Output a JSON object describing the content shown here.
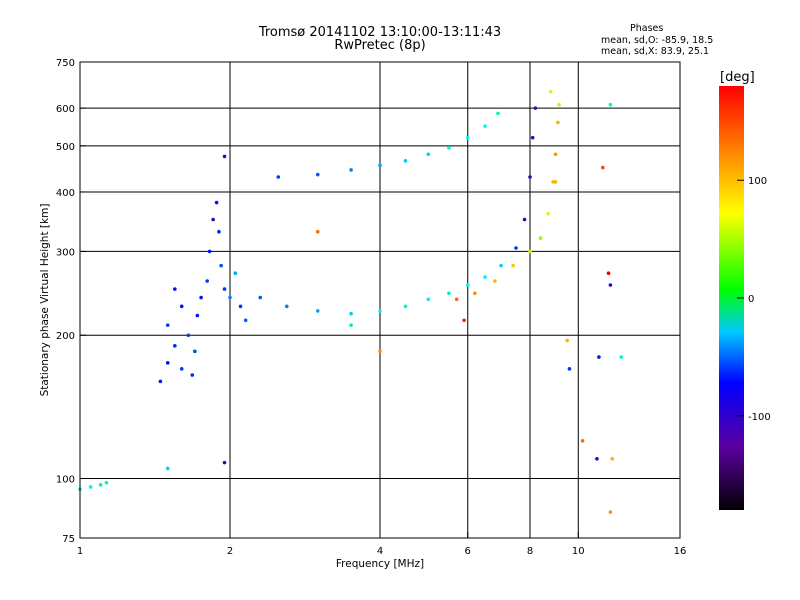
{
  "chart_data": {
    "type": "scatter",
    "title": "Tromsø 20141102 13:10:00-13:11:43",
    "subtitle": "RwPretec (8p)",
    "xlabel": "Frequency [MHz]",
    "ylabel": "Stationary phase Virtual Height [km]",
    "xscale": "log",
    "yscale": "log",
    "xlim": [
      1,
      16
    ],
    "ylim": [
      75,
      750
    ],
    "x_ticks": [
      1,
      2,
      4,
      6,
      8,
      10,
      16
    ],
    "y_ticks": [
      75,
      100,
      200,
      300,
      400,
      500,
      600,
      750
    ],
    "grid_x": [
      2,
      4,
      6,
      8,
      10
    ],
    "grid_y": [
      100,
      200,
      300,
      400,
      500,
      600
    ],
    "color_scale": {
      "label": "[deg]",
      "range": [
        -180,
        180
      ],
      "ticks": [
        100,
        0,
        -100
      ]
    },
    "stats": {
      "header": "Phases",
      "o_mode": "mean, sd,O: -85.9, 18.5",
      "x_mode": "mean, sd,X: 83.9, 25.1"
    },
    "series": [
      {
        "points": [
          [
            1.05,
            96,
            -40
          ],
          [
            1.1,
            97,
            -30
          ],
          [
            1.13,
            98,
            -35
          ],
          [
            1.0,
            95,
            -45
          ]
        ]
      },
      {
        "points": [
          [
            1.45,
            160,
            -110
          ],
          [
            1.5,
            175,
            -110
          ],
          [
            1.55,
            190,
            -105
          ],
          [
            1.5,
            210,
            -100
          ],
          [
            1.6,
            230,
            -110
          ],
          [
            1.65,
            200,
            -100
          ],
          [
            1.55,
            250,
            -110
          ],
          [
            1.6,
            170,
            -100
          ],
          [
            1.68,
            165,
            -105
          ],
          [
            1.7,
            185,
            -95
          ],
          [
            1.72,
            220,
            -110
          ],
          [
            1.75,
            240,
            -110
          ],
          [
            1.8,
            260,
            -100
          ],
          [
            1.82,
            300,
            -110
          ],
          [
            1.85,
            350,
            -120
          ],
          [
            1.88,
            380,
            -110
          ],
          [
            1.9,
            330,
            -105
          ],
          [
            1.92,
            280,
            -95
          ],
          [
            1.95,
            250,
            -100
          ],
          [
            2.0,
            240,
            -80
          ],
          [
            2.05,
            270,
            -70
          ],
          [
            2.1,
            230,
            -100
          ],
          [
            2.15,
            215,
            -90
          ]
        ]
      },
      {
        "points": [
          [
            2.3,
            240,
            -90
          ],
          [
            2.6,
            230,
            -80
          ],
          [
            3.0,
            225,
            -70
          ],
          [
            3.5,
            222,
            -60
          ],
          [
            4.0,
            225,
            -50
          ],
          [
            4.5,
            230,
            -40
          ],
          [
            5.0,
            238,
            -50
          ],
          [
            5.5,
            245,
            -30
          ],
          [
            6.0,
            255,
            -40
          ],
          [
            6.5,
            265,
            -50
          ],
          [
            7.0,
            280,
            -60
          ],
          [
            7.5,
            305,
            -100
          ],
          [
            7.8,
            350,
            -120
          ],
          [
            8.0,
            430,
            -130
          ],
          [
            8.1,
            520,
            -130
          ],
          [
            8.2,
            600,
            -140
          ]
        ]
      },
      {
        "points": [
          [
            5.7,
            238,
            120
          ],
          [
            6.2,
            245,
            110
          ],
          [
            6.8,
            260,
            100
          ],
          [
            7.4,
            280,
            95
          ],
          [
            8.0,
            300,
            70
          ],
          [
            8.4,
            320,
            60
          ],
          [
            8.7,
            360,
            80
          ],
          [
            8.9,
            420,
            100
          ],
          [
            9.0,
            480,
            110
          ],
          [
            9.1,
            560,
            100
          ],
          [
            9.15,
            610,
            90
          ],
          [
            8.8,
            650,
            80
          ]
        ]
      },
      {
        "points": [
          [
            2.5,
            430,
            -100
          ],
          [
            3.0,
            435,
            -90
          ],
          [
            3.5,
            445,
            -80
          ],
          [
            4.0,
            455,
            -70
          ],
          [
            4.5,
            465,
            -60
          ],
          [
            5.0,
            480,
            -60
          ],
          [
            5.5,
            495,
            -40
          ],
          [
            6.0,
            520,
            -50
          ],
          [
            6.5,
            550,
            -50
          ],
          [
            6.9,
            585,
            -30
          ]
        ]
      },
      {
        "points": [
          [
            1.5,
            105,
            -60
          ],
          [
            1.95,
            108,
            -120
          ],
          [
            1.95,
            475,
            -140
          ],
          [
            3.0,
            330,
            120
          ],
          [
            3.5,
            210,
            -20
          ],
          [
            4.0,
            185,
            110
          ],
          [
            5.9,
            215,
            140
          ],
          [
            9.0,
            420,
            100
          ],
          [
            9.5,
            195,
            100
          ],
          [
            9.6,
            170,
            -100
          ],
          [
            10.2,
            120,
            120
          ],
          [
            10.9,
            110,
            -150
          ],
          [
            11.0,
            180,
            -110
          ],
          [
            11.2,
            450,
            130
          ],
          [
            11.6,
            255,
            -150
          ],
          [
            11.7,
            110,
            100
          ],
          [
            11.5,
            270,
            150
          ],
          [
            12.2,
            180,
            -40
          ],
          [
            11.6,
            85,
            110
          ],
          [
            11.6,
            610,
            -40
          ]
        ]
      }
    ]
  }
}
